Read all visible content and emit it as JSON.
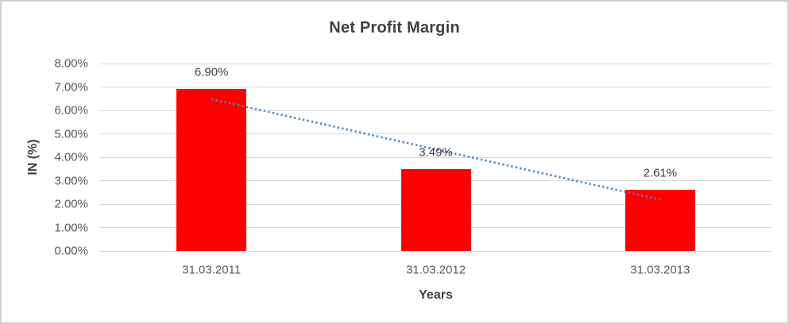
{
  "chart_data": {
    "type": "bar",
    "title": "Net Profit Margin",
    "xlabel": "Years",
    "ylabel": "IN (%)",
    "categories": [
      "31.03.2011",
      "31.03.2012",
      "31.03.2013"
    ],
    "values": [
      6.9,
      3.49,
      2.61
    ],
    "data_labels": [
      "6.90%",
      "3.49%",
      "2.61%"
    ],
    "ylim": [
      0,
      8
    ],
    "ytick_step": 1,
    "ytick_labels": [
      "0.00%",
      "1.00%",
      "2.00%",
      "3.00%",
      "4.00%",
      "5.00%",
      "6.00%",
      "7.00%",
      "8.00%"
    ],
    "grid": true,
    "legend": "none",
    "bar_color": "#ff0000",
    "trendline": {
      "type": "linear",
      "style": "dotted",
      "color": "#4f81bd",
      "start_value": 6.48,
      "end_value": 2.19
    },
    "colors": {
      "title_text": "#404040",
      "tick_text": "#595959",
      "gridline": "#d9d9d9",
      "axis_line": "#d9d9d9",
      "chart_border": "#d0cece",
      "background": "#ffffff"
    }
  }
}
